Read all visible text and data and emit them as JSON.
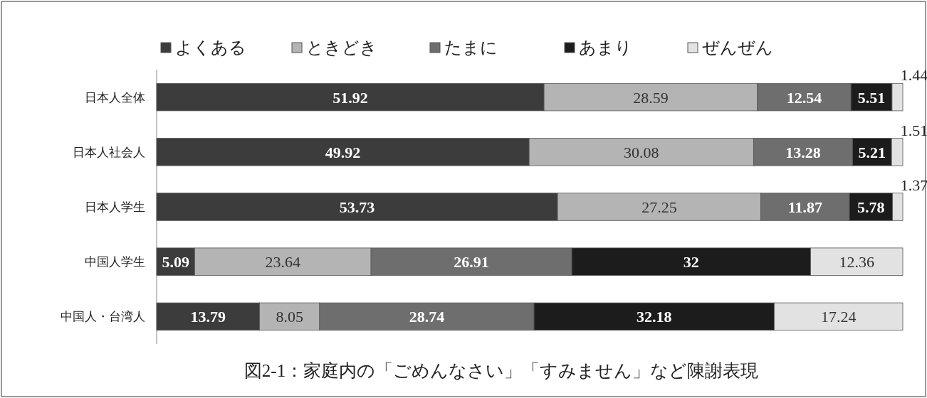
{
  "chart_data": {
    "type": "bar",
    "orientation": "horizontal",
    "stacked": true,
    "data_labels": true,
    "legend": "top",
    "title": "図2-1：家庭内の「ごめんなさい」「すみません」など陳謝表現",
    "categories": [
      "日本人全体",
      "日本人社会人",
      "日本人学生",
      "中国人学生",
      "中国人・台湾人"
    ],
    "series": [
      {
        "name": "よくある",
        "color": "#3c3c3c",
        "values": [
          51.92,
          49.92,
          53.73,
          5.09,
          13.79
        ]
      },
      {
        "name": "ときどき",
        "color": "#b4b4b4",
        "values": [
          28.59,
          30.08,
          27.25,
          23.64,
          8.05
        ]
      },
      {
        "name": "たまに",
        "color": "#6e6e6e",
        "values": [
          12.54,
          13.28,
          11.87,
          26.91,
          28.74
        ]
      },
      {
        "name": "あまり",
        "color": "#1c1c1c",
        "values": [
          5.51,
          5.21,
          5.78,
          32,
          32.18
        ]
      },
      {
        "name": "ぜんぜん",
        "color": "#e2e2e2",
        "values": [
          1.44,
          1.51,
          1.37,
          12.36,
          17.24
        ]
      }
    ]
  }
}
